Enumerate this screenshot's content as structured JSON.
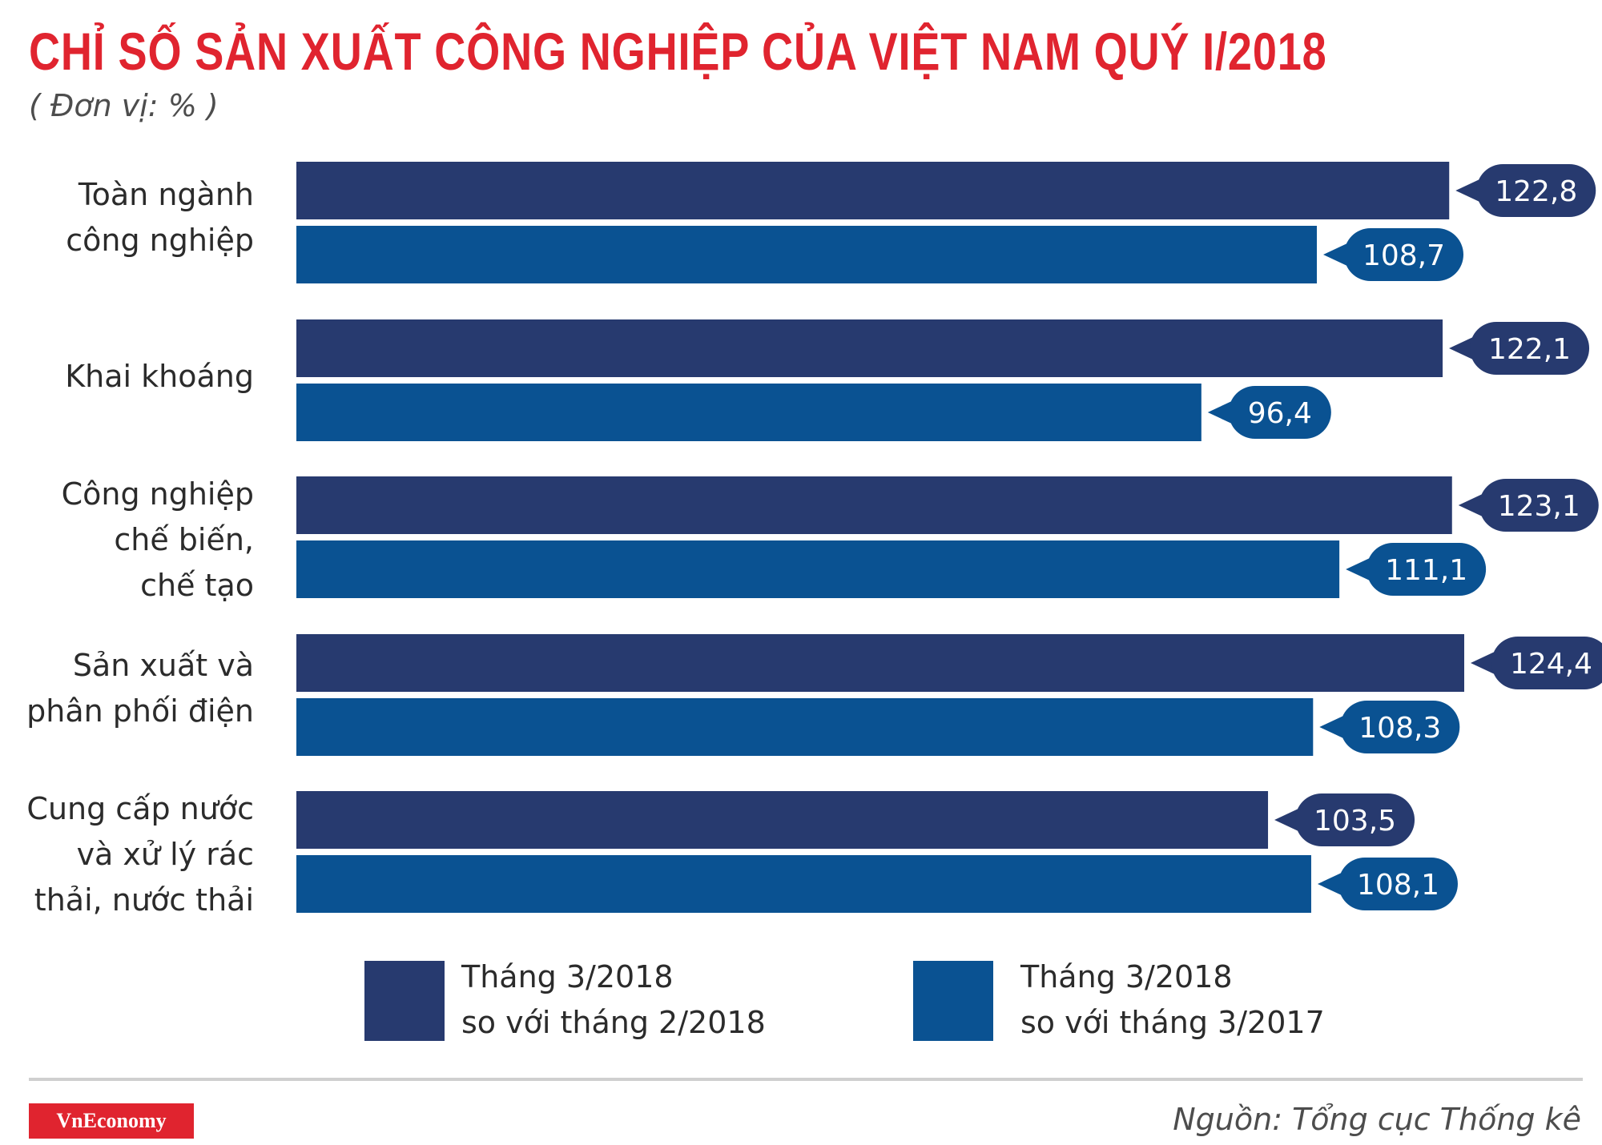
{
  "title": "CHỈ SỐ SẢN XUẤT CÔNG NGHIỆP CỦA VIỆT NAM QUÝ I/2018",
  "unit": "( Đơn vị: % )",
  "source": "Nguồn: Tổng cục Thống kê",
  "logo": "VnEconomy",
  "colors": {
    "title": "#e0242f",
    "series1": "#273a6f",
    "series2": "#0a5292"
  },
  "legend": [
    {
      "label": "Tháng 3/2018\nso với tháng 2/2018"
    },
    {
      "label": "Tháng 3/2018\nso với tháng 3/2017"
    }
  ],
  "chart_data": {
    "type": "bar",
    "orientation": "horizontal",
    "categories": [
      "Toàn ngành\ncông nghiệp",
      "Khai khoáng",
      "Công nghiệp\nchế biến,\nchế tạo",
      "Sản xuất và\nphân phối điện",
      "Cung cấp nước\nvà xử lý rác\nthải, nước thải"
    ],
    "series": [
      {
        "name": "Tháng 3/2018 so với tháng 2/2018",
        "values": [
          122.8,
          122.1,
          123.1,
          124.4,
          103.5
        ],
        "labels": [
          "122,8",
          "122,1",
          "123,1",
          "124,4",
          "103,5"
        ]
      },
      {
        "name": "Tháng 3/2018 so với tháng 3/2017",
        "values": [
          108.7,
          96.4,
          111.1,
          108.3,
          108.1
        ],
        "labels": [
          "108,7",
          "96,4",
          "111,1",
          "108,3",
          "108,1"
        ]
      }
    ],
    "xlim": [
      0,
      124.4
    ],
    "grid": false,
    "legend_position": "bottom"
  }
}
